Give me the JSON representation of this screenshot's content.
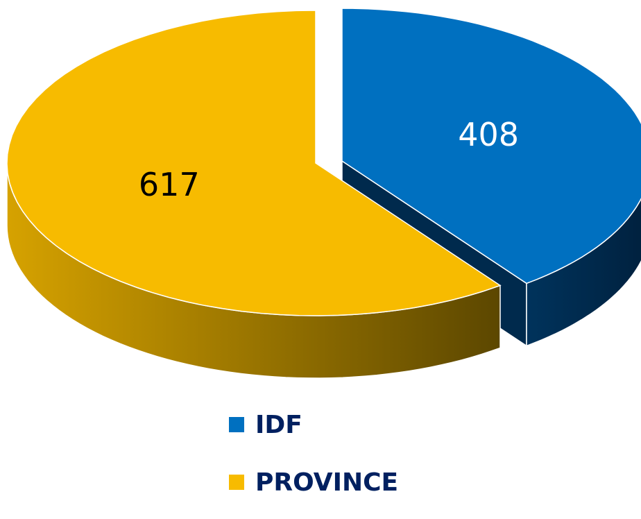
{
  "chart_data": {
    "type": "pie3d",
    "categories": [
      "IDF",
      "PROVINCE"
    ],
    "values": [
      408,
      617
    ],
    "colors": [
      "#0070c0",
      "#f7bb00"
    ],
    "legend": "bottom"
  }
}
